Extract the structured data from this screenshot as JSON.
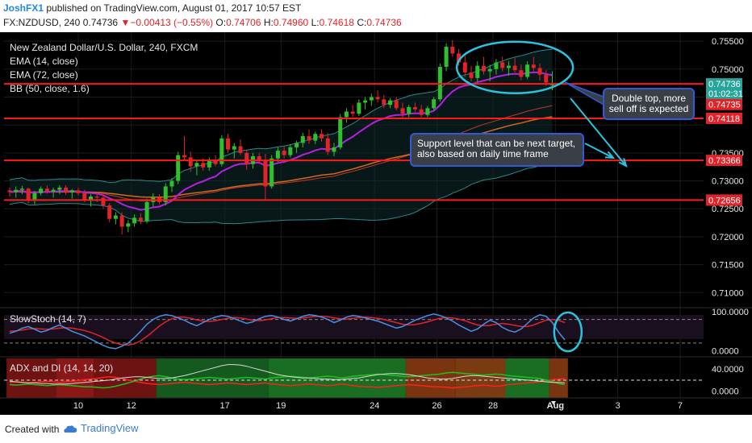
{
  "header": {
    "author": "JoshFX1",
    "published": "published on TradingView.com, August 01, 2017 10:57 EST",
    "symbol": "FX:NZDUSD, 240",
    "price": "0.74736",
    "arrow": "▼",
    "change": "−0.00413 (−0.55%)",
    "o_label": "O:",
    "o_val": "0.74706",
    "h_label": "H:",
    "h_val": "0.74960",
    "l_label": "L:",
    "l_val": "0.74618",
    "c_label": "C:",
    "c_val": "0.74736"
  },
  "footer": {
    "created": "Created with",
    "brand": "TradingView"
  },
  "chart_data": {
    "type": "candlestick",
    "title": "New Zealand Dollar/U.S. Dollar, 240, FXCM",
    "indicators": [
      "EMA (14, close)",
      "EMA (72, close)",
      "BB (50, close, 1.6)"
    ],
    "y_ticks": [
      0.755,
      0.75,
      0.745,
      0.74,
      0.735,
      0.73,
      0.725,
      0.72,
      0.715,
      0.71
    ],
    "y_labels": [
      "0.75500",
      "0.75000",
      "0.74500",
      "0.74000",
      "0.73500",
      "0.73000",
      "0.72500",
      "0.72000",
      "0.71500",
      "0.71000"
    ],
    "ylim": [
      0.7073,
      0.7566
    ],
    "x_labels": [
      "10",
      "12",
      "17",
      "19",
      "24",
      "26",
      "28",
      "Aug",
      "3",
      "7"
    ],
    "price_tags": [
      {
        "label": "0.74736",
        "value": 0.74736,
        "color": "#26a69a"
      },
      {
        "label": "01:02:31",
        "value": 0.74565,
        "color": "#26a69a"
      },
      {
        "label": "0.74735",
        "value": 0.74367,
        "color": "#e0242a"
      },
      {
        "label": "0.74118",
        "value": 0.74118,
        "color": "#e0242a"
      },
      {
        "label": "0.73366",
        "value": 0.73366,
        "color": "#e0242a"
      },
      {
        "label": "0.72656",
        "value": 0.72656,
        "color": "#e0242a"
      }
    ],
    "horizontal_levels": [
      0.74735,
      0.74118,
      0.73366,
      0.72656
    ],
    "annotations": [
      {
        "text_lines": [
          "Double top, more",
          "sell off is expected"
        ]
      },
      {
        "text_lines": [
          "Support level that can be next target,",
          "also based on daily time frame"
        ]
      }
    ],
    "candles": [
      [
        0.7283,
        0.7288,
        0.7272,
        0.728
      ],
      [
        0.728,
        0.729,
        0.727,
        0.7284
      ],
      [
        0.7284,
        0.7291,
        0.7276,
        0.7286
      ],
      [
        0.7286,
        0.7288,
        0.726,
        0.7266
      ],
      [
        0.7266,
        0.7282,
        0.7258,
        0.7278
      ],
      [
        0.7278,
        0.729,
        0.7274,
        0.7286
      ],
      [
        0.7286,
        0.7292,
        0.7277,
        0.7281
      ],
      [
        0.7281,
        0.7288,
        0.727,
        0.7284
      ],
      [
        0.7284,
        0.7292,
        0.7276,
        0.7288
      ],
      [
        0.7288,
        0.7292,
        0.7275,
        0.728
      ],
      [
        0.728,
        0.7285,
        0.7268,
        0.7283
      ],
      [
        0.7283,
        0.7288,
        0.7274,
        0.7278
      ],
      [
        0.7278,
        0.7284,
        0.7262,
        0.7266
      ],
      [
        0.7266,
        0.7276,
        0.7254,
        0.7272
      ],
      [
        0.7272,
        0.728,
        0.7262,
        0.727
      ],
      [
        0.727,
        0.7278,
        0.725,
        0.7256
      ],
      [
        0.7256,
        0.726,
        0.7226,
        0.7232
      ],
      [
        0.7232,
        0.7244,
        0.7222,
        0.7238
      ],
      [
        0.7238,
        0.7244,
        0.7204,
        0.7218
      ],
      [
        0.7218,
        0.723,
        0.7208,
        0.7224
      ],
      [
        0.7224,
        0.724,
        0.7218,
        0.7234
      ],
      [
        0.7234,
        0.7242,
        0.7222,
        0.7228
      ],
      [
        0.7228,
        0.7268,
        0.7224,
        0.7262
      ],
      [
        0.7262,
        0.7278,
        0.7254,
        0.727
      ],
      [
        0.727,
        0.7276,
        0.7258,
        0.7262
      ],
      [
        0.7262,
        0.7296,
        0.7256,
        0.729
      ],
      [
        0.729,
        0.7305,
        0.728,
        0.73
      ],
      [
        0.73,
        0.7352,
        0.7294,
        0.7346
      ],
      [
        0.7346,
        0.738,
        0.7336,
        0.7342
      ],
      [
        0.7342,
        0.7352,
        0.7316,
        0.7326
      ],
      [
        0.7326,
        0.7338,
        0.731,
        0.7332
      ],
      [
        0.7332,
        0.734,
        0.7318,
        0.7324
      ],
      [
        0.7324,
        0.7342,
        0.7318,
        0.7338
      ],
      [
        0.7338,
        0.7346,
        0.7326,
        0.733
      ],
      [
        0.733,
        0.7382,
        0.7326,
        0.7376
      ],
      [
        0.7376,
        0.7384,
        0.735,
        0.7356
      ],
      [
        0.7356,
        0.7368,
        0.734,
        0.7362
      ],
      [
        0.7362,
        0.7374,
        0.7346,
        0.735
      ],
      [
        0.735,
        0.7356,
        0.732,
        0.733
      ],
      [
        0.733,
        0.735,
        0.7322,
        0.7344
      ],
      [
        0.7344,
        0.735,
        0.733,
        0.7336
      ],
      [
        0.7336,
        0.7348,
        0.7264,
        0.729
      ],
      [
        0.729,
        0.7346,
        0.7286,
        0.734
      ],
      [
        0.734,
        0.736,
        0.7334,
        0.7354
      ],
      [
        0.7354,
        0.7362,
        0.734,
        0.7346
      ],
      [
        0.7346,
        0.7366,
        0.7342,
        0.736
      ],
      [
        0.736,
        0.7372,
        0.735,
        0.7368
      ],
      [
        0.7368,
        0.7386,
        0.736,
        0.738
      ],
      [
        0.738,
        0.7392,
        0.7366,
        0.7372
      ],
      [
        0.7372,
        0.7388,
        0.7366,
        0.7384
      ],
      [
        0.7384,
        0.7392,
        0.737,
        0.7376
      ],
      [
        0.7376,
        0.7386,
        0.7346,
        0.7352
      ],
      [
        0.7352,
        0.7368,
        0.7344,
        0.736
      ],
      [
        0.736,
        0.742,
        0.7356,
        0.7414
      ],
      [
        0.7414,
        0.743,
        0.7404,
        0.7424
      ],
      [
        0.7424,
        0.7436,
        0.7414,
        0.742
      ],
      [
        0.742,
        0.7446,
        0.7416,
        0.744
      ],
      [
        0.744,
        0.745,
        0.7428,
        0.7444
      ],
      [
        0.7444,
        0.7456,
        0.7434,
        0.745
      ],
      [
        0.745,
        0.7462,
        0.744,
        0.7446
      ],
      [
        0.7446,
        0.7454,
        0.743,
        0.7436
      ],
      [
        0.7436,
        0.7448,
        0.743,
        0.7444
      ],
      [
        0.7444,
        0.745,
        0.7426,
        0.743
      ],
      [
        0.743,
        0.744,
        0.7412,
        0.742
      ],
      [
        0.742,
        0.7436,
        0.7414,
        0.7432
      ],
      [
        0.7432,
        0.744,
        0.7424,
        0.7428
      ],
      [
        0.7428,
        0.7436,
        0.7414,
        0.7418
      ],
      [
        0.7418,
        0.7434,
        0.7414,
        0.743
      ],
      [
        0.743,
        0.745,
        0.7426,
        0.7446
      ],
      [
        0.7446,
        0.751,
        0.7442,
        0.7504
      ],
      [
        0.7504,
        0.7546,
        0.7496,
        0.754
      ],
      [
        0.754,
        0.7552,
        0.7522,
        0.7528
      ],
      [
        0.7528,
        0.7536,
        0.7506,
        0.7512
      ],
      [
        0.7512,
        0.7524,
        0.7486,
        0.7494
      ],
      [
        0.7494,
        0.7506,
        0.7478,
        0.7484
      ],
      [
        0.7484,
        0.7514,
        0.7478,
        0.7506
      ],
      [
        0.7506,
        0.7522,
        0.749,
        0.7496
      ],
      [
        0.7496,
        0.7508,
        0.7478,
        0.75
      ],
      [
        0.75,
        0.7518,
        0.749,
        0.7512
      ],
      [
        0.7512,
        0.7522,
        0.7496,
        0.7502
      ],
      [
        0.7502,
        0.7514,
        0.7488,
        0.7506
      ],
      [
        0.7506,
        0.752,
        0.7494,
        0.7498
      ],
      [
        0.7498,
        0.7508,
        0.748,
        0.7486
      ],
      [
        0.7486,
        0.7514,
        0.7482,
        0.7508
      ],
      [
        0.7508,
        0.7522,
        0.7496,
        0.7502
      ],
      [
        0.7502,
        0.751,
        0.748,
        0.749
      ],
      [
        0.749,
        0.7498,
        0.747,
        0.7476
      ],
      [
        0.7471,
        0.7496,
        0.7462,
        0.7474
      ]
    ],
    "stoch": {
      "title": "SlowStoch (14, 7)",
      "y_labels": [
        "100.0000",
        "0.0000"
      ],
      "ylim": [
        -15,
        110
      ],
      "k": [
        45,
        50,
        58,
        62,
        55,
        48,
        52,
        60,
        66,
        58,
        50,
        44,
        38,
        30,
        22,
        14,
        8,
        6,
        12,
        20,
        34,
        50,
        68,
        80,
        88,
        92,
        90,
        84,
        78,
        70,
        64,
        72,
        80,
        86,
        90,
        88,
        82,
        76,
        70,
        74,
        82,
        88,
        90,
        86,
        80,
        76,
        82,
        88,
        92,
        90,
        86,
        80,
        72,
        78,
        86,
        90,
        88,
        84,
        80,
        76,
        70,
        64,
        58,
        62,
        70,
        78,
        84,
        90,
        94,
        90,
        84,
        76,
        66,
        58,
        50,
        56,
        68,
        78,
        72,
        60,
        52,
        48,
        56,
        70,
        84,
        92,
        88,
        72,
        48,
        28
      ],
      "d": [
        50,
        51,
        53,
        56,
        57,
        56,
        55,
        56,
        58,
        59,
        58,
        55,
        52,
        47,
        41,
        34,
        26,
        20,
        16,
        15,
        18,
        26,
        37,
        50,
        63,
        74,
        82,
        86,
        86,
        83,
        79,
        76,
        75,
        77,
        80,
        83,
        85,
        84,
        81,
        78,
        77,
        79,
        82,
        85,
        85,
        84,
        83,
        84,
        86,
        88,
        88,
        87,
        84,
        82,
        81,
        83,
        85,
        86,
        85,
        83,
        80,
        76,
        72,
        68,
        66,
        67,
        70,
        74,
        79,
        83,
        85,
        84,
        81,
        77,
        71,
        66,
        64,
        65,
        68,
        70,
        68,
        65,
        62,
        62,
        66,
        72,
        78,
        80,
        78,
        72
      ]
    },
    "adx": {
      "title": "ADX and DI (14, 14, 20)",
      "y_labels": [
        "40.0000",
        "0.0000"
      ],
      "ylim": [
        -12,
        62
      ],
      "adx": [
        18,
        17,
        16,
        15,
        15,
        14,
        14,
        13,
        13,
        13,
        14,
        15,
        16,
        17,
        18,
        19,
        20,
        22,
        24,
        25,
        26,
        26,
        25,
        24,
        23,
        23,
        24,
        26,
        28,
        31,
        34,
        37,
        40,
        43,
        46,
        48,
        48,
        47,
        45,
        42,
        39,
        36,
        33,
        30,
        28,
        26,
        25,
        24,
        24,
        23,
        22,
        22,
        21,
        21,
        22,
        23,
        24,
        26,
        28,
        30,
        31,
        32,
        32,
        31,
        30,
        28,
        26,
        24,
        23,
        22,
        22,
        23,
        25,
        27,
        28,
        28,
        27,
        26,
        25,
        24,
        23,
        22,
        21,
        20,
        19,
        18,
        17,
        16,
        16,
        15
      ],
      "di_plus": [
        12,
        11,
        12,
        13,
        12,
        11,
        10,
        11,
        12,
        11,
        10,
        9,
        8,
        8,
        7,
        6,
        7,
        9,
        12,
        15,
        18,
        22,
        25,
        27,
        28,
        26,
        24,
        22,
        21,
        22,
        23,
        24,
        25,
        24,
        23,
        22,
        23,
        24,
        25,
        24,
        23,
        22,
        24,
        25,
        26,
        27,
        26,
        25,
        24,
        25,
        26,
        27,
        26,
        24,
        25,
        27,
        28,
        29,
        30,
        31,
        30,
        29,
        28,
        27,
        26,
        27,
        28,
        29,
        30,
        31,
        33,
        34,
        33,
        32,
        31,
        30,
        29,
        30,
        31,
        30,
        28,
        27,
        26,
        25,
        24,
        23,
        20,
        17,
        14,
        12
      ],
      "di_minus": [
        16,
        17,
        16,
        15,
        16,
        17,
        18,
        17,
        16,
        17,
        18,
        19,
        21,
        22,
        23,
        25,
        26,
        25,
        23,
        20,
        18,
        16,
        14,
        13,
        12,
        13,
        14,
        15,
        16,
        15,
        14,
        13,
        12,
        13,
        14,
        15,
        14,
        13,
        12,
        13,
        14,
        15,
        13,
        12,
        11,
        10,
        11,
        12,
        13,
        12,
        11,
        10,
        11,
        13,
        12,
        10,
        9,
        8,
        8,
        7,
        8,
        9,
        10,
        11,
        12,
        11,
        10,
        9,
        8,
        8,
        7,
        6,
        7,
        8,
        9,
        10,
        11,
        10,
        9,
        10,
        12,
        13,
        14,
        15,
        16,
        17,
        19,
        21,
        22,
        23
      ],
      "bg_segments": [
        {
          "from": 0,
          "to": 8,
          "color": "#6e1212"
        },
        {
          "from": 8,
          "to": 14,
          "color": "#8a1818"
        },
        {
          "from": 14,
          "to": 24,
          "color": "#6e1212"
        },
        {
          "from": 24,
          "to": 42,
          "color": "#145a1e"
        },
        {
          "from": 42,
          "to": 64,
          "color": "#1a6e22"
        },
        {
          "from": 64,
          "to": 72,
          "color": "#7a3410"
        },
        {
          "from": 72,
          "to": 80,
          "color": "#7a3a12"
        },
        {
          "from": 80,
          "to": 87,
          "color": "#1a6e22"
        },
        {
          "from": 87,
          "to": 90,
          "color": "#7a3410"
        }
      ]
    }
  }
}
